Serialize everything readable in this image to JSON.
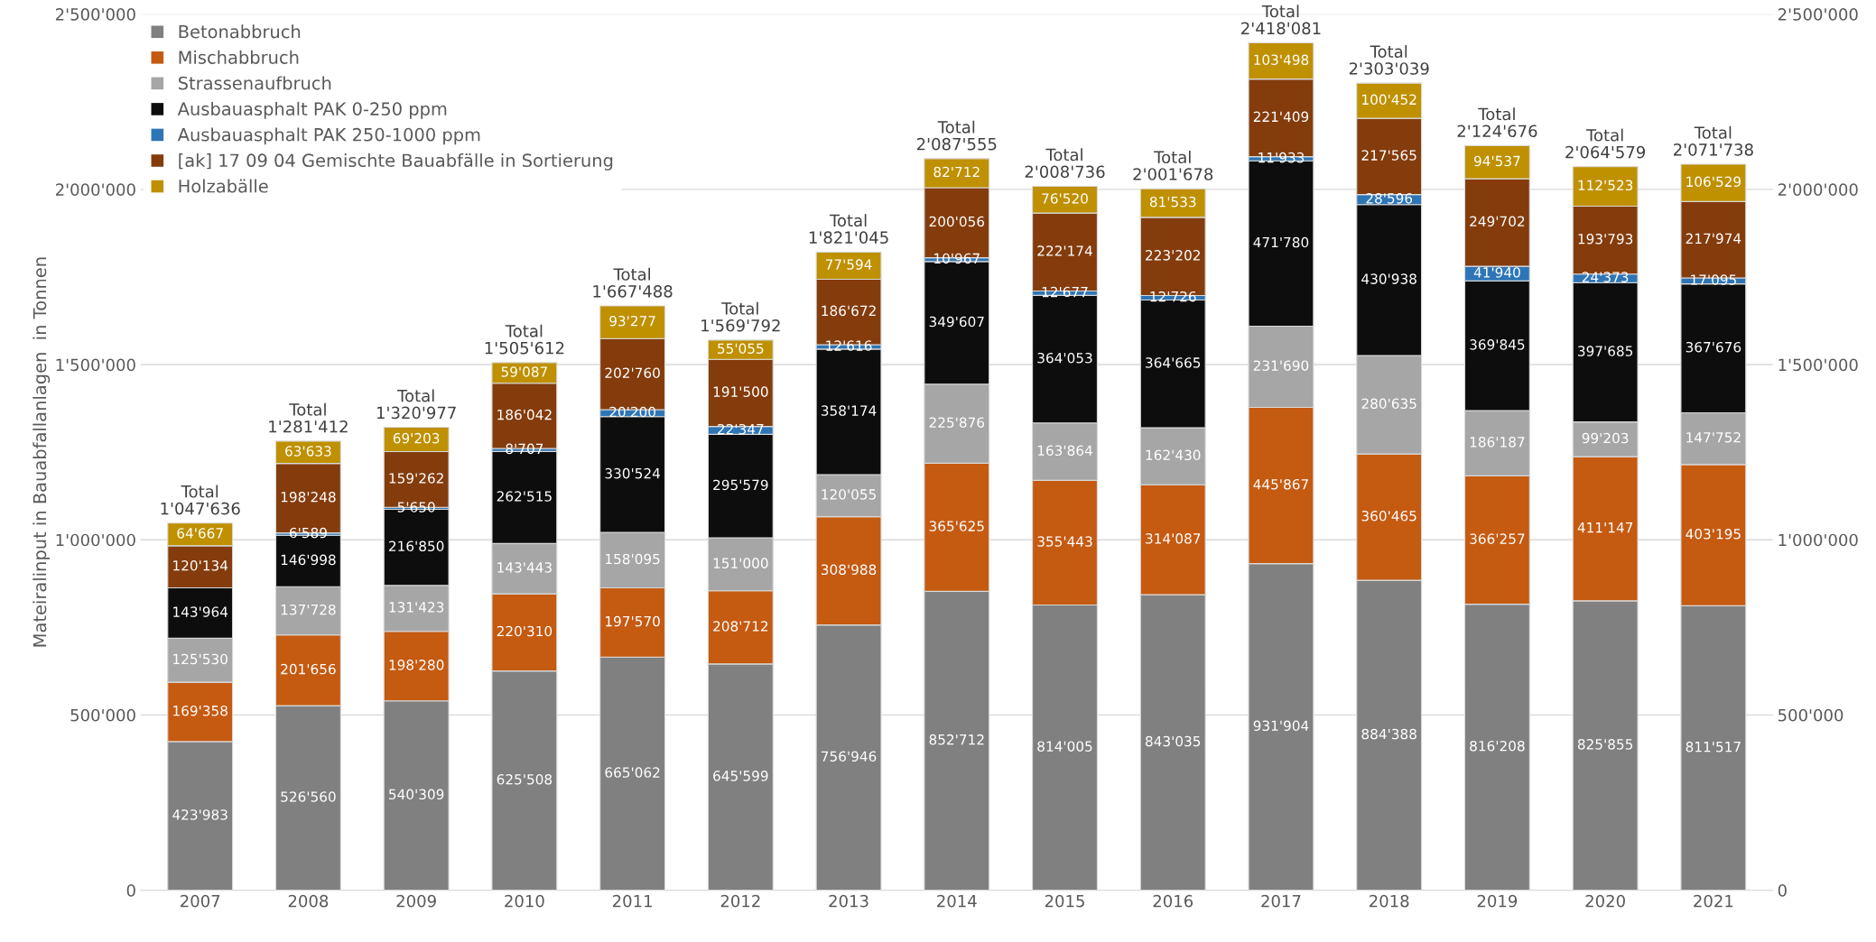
{
  "chart_data": {
    "type": "bar",
    "stacked": true,
    "ylabel": "Mateiralinput in Bauabfallanlagen  in Tonnen",
    "categories": [
      "2007",
      "2008",
      "2009",
      "2010",
      "2011",
      "2012",
      "2013",
      "2014",
      "2015",
      "2016",
      "2017",
      "2018",
      "2019",
      "2020",
      "2021"
    ],
    "ylim": [
      0,
      2500000
    ],
    "yticks": [
      {
        "value": 0,
        "label": "0"
      },
      {
        "value": 500000,
        "label": "500'000"
      },
      {
        "value": 1000000,
        "label": "1'000'000"
      },
      {
        "value": 1500000,
        "label": "1'500'000"
      },
      {
        "value": 2000000,
        "label": "2'000'000"
      },
      {
        "value": 2500000,
        "label": "2'500'000"
      }
    ],
    "y2lim": [
      0,
      2500000
    ],
    "y2ticks": [
      {
        "value": 0,
        "label": "0"
      },
      {
        "value": 500000,
        "label": "500'000"
      },
      {
        "value": 1000000,
        "label": "1'000'000"
      },
      {
        "value": 1500000,
        "label": "1'500'000"
      },
      {
        "value": 2000000,
        "label": "2'000'000"
      },
      {
        "value": 2500000,
        "label": "2'500'000"
      }
    ],
    "grid": "y",
    "legend": "top left",
    "series": [
      {
        "name": "Betonabbruch",
        "color": "#808080",
        "values": [
          423983,
          526560,
          540309,
          625508,
          665062,
          645599,
          756946,
          852712,
          814005,
          843035,
          931904,
          884388,
          816208,
          825855,
          811517
        ],
        "value_labels": [
          "423'983",
          "526'560",
          "540'309",
          "625'508",
          "665'062",
          "645'599",
          "756'946",
          "852'712",
          "814'005",
          "843'035",
          "931'904",
          "884'388",
          "816'208",
          "825'855",
          "811'517"
        ]
      },
      {
        "name": "Mischabbruch",
        "color": "#c55a11",
        "values": [
          169358,
          201656,
          198280,
          220310,
          197570,
          208712,
          308988,
          365625,
          355443,
          314087,
          445867,
          360465,
          366257,
          411147,
          403195
        ],
        "value_labels": [
          "169'358",
          "201'656",
          "198'280",
          "220'310",
          "197'570",
          "208'712",
          "308'988",
          "365'625",
          "355'443",
          "314'087",
          "445'867",
          "360'465",
          "366'257",
          "411'147",
          "403'195"
        ]
      },
      {
        "name": "Strassenaufbruch",
        "color": "#a6a6a6",
        "values": [
          125530,
          137728,
          131423,
          143443,
          158095,
          151000,
          120055,
          225876,
          163864,
          162430,
          231690,
          280635,
          186187,
          99203,
          147752
        ],
        "value_labels": [
          "125'530",
          "137'728",
          "131'423",
          "143'443",
          "158'095",
          "151'000",
          "120'055",
          "225'876",
          "163'864",
          "162'430",
          "231'690",
          "280'635",
          "186'187",
          "99'203",
          "147'752"
        ]
      },
      {
        "name": "Ausbauasphalt PAK 0-250 ppm",
        "color": "#0d0d0d",
        "values": [
          143964,
          146998,
          216850,
          262515,
          330524,
          295579,
          358174,
          349607,
          364053,
          364665,
          471780,
          430938,
          369845,
          397685,
          367676
        ],
        "value_labels": [
          "143'964",
          "146'998",
          "216'850",
          "262'515",
          "330'524",
          "295'579",
          "358'174",
          "349'607",
          "364'053",
          "364'665",
          "471'780",
          "430'938",
          "369'845",
          "397'685",
          "367'676"
        ]
      },
      {
        "name": "Ausbauasphalt PAK 250-1000 ppm",
        "color": "#2e75b6",
        "values": [
          null,
          6589,
          5650,
          8707,
          20200,
          22347,
          12616,
          10967,
          12677,
          12726,
          11933,
          28596,
          41940,
          24373,
          17095
        ],
        "value_labels": [
          null,
          "6'589",
          "5'650",
          "8'707",
          "20'200",
          "22'347",
          "12'616",
          "10'967",
          "12'677",
          "12'726",
          "11'933",
          "28'596",
          "41'940",
          "24'373",
          "17'095"
        ]
      },
      {
        "name": "[ak] 17 09 04 Gemischte Bauabfälle in Sortierung",
        "color": "#843c0c",
        "values": [
          120134,
          198248,
          159262,
          186042,
          202760,
          191500,
          186672,
          200056,
          222174,
          223202,
          221409,
          217565,
          249702,
          193793,
          217974
        ],
        "value_labels": [
          "120'134",
          "198'248",
          "159'262",
          "186'042",
          "202'760",
          "191'500",
          "186'672",
          "200'056",
          "222'174",
          "223'202",
          "221'409",
          "217'565",
          "249'702",
          "193'793",
          "217'974"
        ]
      },
      {
        "name": "Holzabälle",
        "color": "#bf9000",
        "values": [
          64667,
          63633,
          69203,
          59087,
          93277,
          55055,
          77594,
          82712,
          76520,
          81533,
          103498,
          100452,
          94537,
          112523,
          106529
        ],
        "value_labels": [
          "64'667",
          "63'633",
          "69'203",
          "59'087",
          "93'277",
          "55'055",
          "77'594",
          "82'712",
          "76'520",
          "81'533",
          "103'498",
          "100'452",
          "94'537",
          "112'523",
          "106'529"
        ]
      }
    ],
    "totals": [
      "Total\n1'047'636",
      "Total\n1'281'412",
      "Total\n1'320'977",
      "Total\n1'505'612",
      "Total\n1'667'488",
      "Total\n1'569'792",
      "Total\n1'821'045",
      "Total\n2'087'555",
      "Total\n2'008'736",
      "Total\n2'001'678",
      "Total\n2'418'081",
      "Total\n2'303'039",
      "Total\n2'124'676",
      "Total\n2'064'579",
      "Total\n2'071'738"
    ]
  }
}
